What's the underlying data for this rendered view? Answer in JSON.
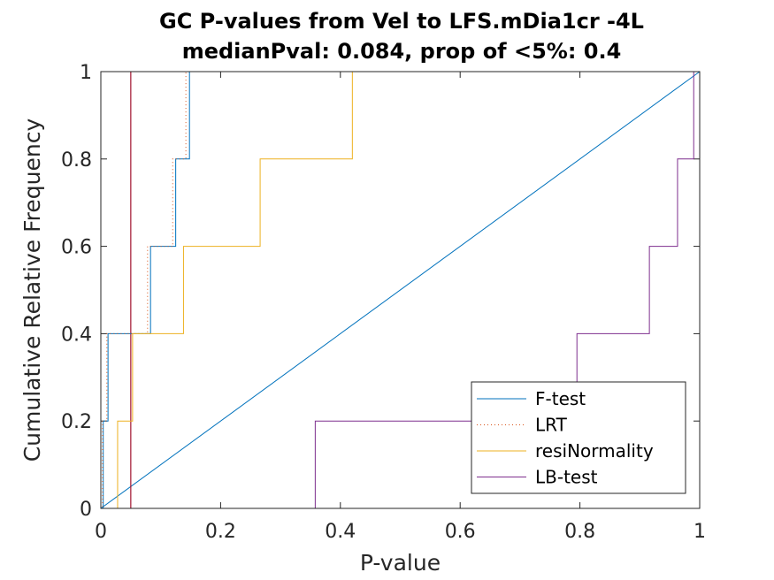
{
  "chart_data": {
    "type": "line",
    "title_lines": [
      "GC P-values from Vel to LFS.mDia1cr -4L",
      "medianPval: 0.084, prop of <5%: 0.4"
    ],
    "xlabel": "P-value",
    "ylabel": "Cumulative Relative Frequency",
    "xlim": [
      0,
      1
    ],
    "ylim": [
      0,
      1
    ],
    "xticks": [
      0,
      0.2,
      0.4,
      0.6,
      0.8,
      1
    ],
    "xtick_labels": [
      "0",
      "0.2",
      "0.4",
      "0.6",
      "0.8",
      "1"
    ],
    "yticks": [
      0,
      0.2,
      0.4,
      0.6,
      0.8,
      1
    ],
    "ytick_labels": [
      "0",
      "0.2",
      "0.4",
      "0.6",
      "0.8",
      "1"
    ],
    "grid": false,
    "legend_position": "bottom-right",
    "reference_lines": [
      {
        "kind": "diagonal",
        "from": [
          0,
          0
        ],
        "to": [
          1,
          1
        ],
        "color": "#0072BD"
      },
      {
        "kind": "vertical",
        "x": 0.05,
        "color": "#A2142F"
      }
    ],
    "series": [
      {
        "name": "F-test",
        "color": "#0072BD",
        "dash": "solid",
        "x": [
          0,
          0.004,
          0.004,
          0.012,
          0.012,
          0.083,
          0.083,
          0.125,
          0.125,
          0.148,
          0.148,
          1
        ],
        "y": [
          0,
          0,
          0.2,
          0.2,
          0.4,
          0.4,
          0.6,
          0.6,
          0.8,
          0.8,
          1,
          1
        ]
      },
      {
        "name": "LRT",
        "color": "#D95319",
        "dash": "dotted",
        "x": [
          0,
          0.003,
          0.003,
          0.01,
          0.01,
          0.078,
          0.078,
          0.12,
          0.12,
          0.142,
          0.142,
          1
        ],
        "y": [
          0,
          0,
          0.2,
          0.2,
          0.4,
          0.4,
          0.6,
          0.6,
          0.8,
          0.8,
          1,
          1
        ]
      },
      {
        "name": "resiNormality",
        "color": "#EDB120",
        "dash": "solid",
        "x": [
          0,
          0.028,
          0.028,
          0.053,
          0.053,
          0.138,
          0.138,
          0.266,
          0.266,
          0.42,
          0.42,
          1
        ],
        "y": [
          0,
          0,
          0.2,
          0.2,
          0.4,
          0.4,
          0.6,
          0.6,
          0.8,
          0.8,
          1,
          1
        ]
      },
      {
        "name": "LB-test",
        "color": "#7E2F8E",
        "dash": "solid",
        "x": [
          0,
          0.358,
          0.358,
          0.795,
          0.795,
          0.916,
          0.916,
          0.963,
          0.963,
          0.99,
          0.99,
          1
        ],
        "y": [
          0,
          0,
          0.2,
          0.2,
          0.4,
          0.4,
          0.6,
          0.6,
          0.8,
          0.8,
          1,
          1
        ]
      }
    ]
  }
}
